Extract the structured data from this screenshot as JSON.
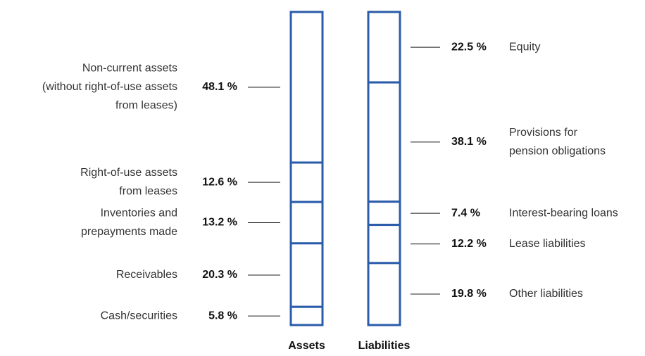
{
  "chart_data": {
    "type": "stacked_column",
    "color": "#2a5caa",
    "categories": [
      "Assets",
      "Liabilities"
    ],
    "stacks": [
      {
        "labels": [
          [
            "Non-current assets",
            "(without right-of-use assets",
            "from leases)"
          ],
          [
            "Right-of-use assets",
            "from leases"
          ],
          [
            "Inventories and",
            "prepayments made"
          ],
          [
            "Receivables"
          ],
          [
            "Cash/securities"
          ]
        ],
        "values": [
          48.1,
          12.6,
          13.2,
          20.3,
          5.8
        ],
        "value_labels": [
          "48.1 %",
          "12.6 %",
          "13.2 %",
          "20.3 %",
          "5.8 %"
        ]
      },
      {
        "labels": [
          [
            "Equity"
          ],
          [
            "Provisions for",
            "pension obligations"
          ],
          [
            "Interest-bearing loans"
          ],
          [
            "Lease liabilities"
          ],
          [
            "Other liabilities"
          ]
        ],
        "values": [
          22.5,
          38.1,
          7.4,
          12.2,
          19.8
        ],
        "value_labels": [
          "22.5 %",
          "38.1 %",
          "7.4 %",
          "12.2 %",
          "19.8 %"
        ]
      }
    ]
  }
}
